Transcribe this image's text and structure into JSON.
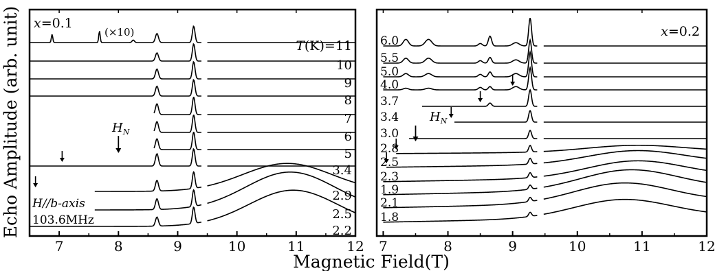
{
  "figure": {
    "ylabel": "Echo Amplitude (arb. unit)",
    "xlabel": "Magnetic Field(T)"
  },
  "chart_data": [
    {
      "type": "line",
      "panel": "left",
      "label": "x=0.1",
      "scale_note": "(×10)",
      "header": "T(K)=11",
      "annotations": {
        "hn": "H",
        "hn_sub": "N",
        "orientation": "H//b-axis",
        "frequency": "103.6MHz"
      },
      "xlim": [
        6.5,
        12
      ],
      "xticks": [
        "7",
        "8",
        "9",
        "10",
        "11",
        "12"
      ],
      "xtick_values": [
        7,
        8,
        9,
        10,
        11,
        12
      ],
      "gap": [
        9.4,
        9.5
      ],
      "peaks": [
        8.65,
        9.27
      ],
      "series": [
        {
          "label": "11",
          "baseline": 62,
          "start": 6.5,
          "peaks": [
            0.11,
            0.2
          ],
          "hump": 0,
          "hump_center": 10.9,
          "arrow": null
        },
        {
          "label": "10",
          "baseline": 89,
          "start": 6.5,
          "peaks": [
            0.1,
            0.21
          ],
          "hump": 0,
          "hump_center": 10.9,
          "arrow": null
        },
        {
          "label": "9",
          "baseline": 115,
          "start": 6.5,
          "peaks": [
            0.12,
            0.21
          ],
          "hump": 0,
          "hump_center": 10.9,
          "arrow": null
        },
        {
          "label": "8",
          "baseline": 140,
          "start": 6.5,
          "peaks": [
            0.12,
            0.2
          ],
          "hump": 0,
          "hump_center": 10.9,
          "arrow": null
        },
        {
          "label": "7",
          "baseline": 167,
          "start": 8.6,
          "peaks": [
            0.13,
            0.21
          ],
          "hump": 0,
          "hump_center": 10.9,
          "arrow": null
        },
        {
          "label": "6",
          "baseline": 193,
          "start": 8.6,
          "peaks": [
            0.13,
            0.21
          ],
          "hump": 0,
          "hump_center": 10.9,
          "arrow": null
        },
        {
          "label": "5",
          "baseline": 218,
          "start": 8.6,
          "peaks": [
            0.13,
            0.21
          ],
          "hump": 0,
          "hump_center": 10.9,
          "arrow": null
        },
        {
          "label": "3.4",
          "baseline": 242,
          "start": 6.5,
          "peaks": [
            0.15,
            0.21
          ],
          "hump": 0,
          "hump_center": 10.9,
          "arrow": 7.05
        },
        {
          "label": "2.9",
          "baseline": 279,
          "start": 7.6,
          "peaks": [
            0.13,
            0.2
          ],
          "hump": 0.34,
          "hump_center": 10.85,
          "arrow": 6.6
        },
        {
          "label": "2.5",
          "baseline": 306,
          "start": 7.6,
          "peaks": [
            0.13,
            0.2
          ],
          "hump": 0.46,
          "hump_center": 10.9,
          "arrow": null
        },
        {
          "label": "2.2",
          "baseline": 330,
          "start": 6.5,
          "peaks": [
            0.11,
            0.2
          ],
          "hump": 0.44,
          "hump_center": 10.95,
          "arrow": null
        }
      ],
      "hn_arrow": 8.0
    },
    {
      "type": "line",
      "panel": "right",
      "label": "x=0.2",
      "annotations": {
        "hn": "H",
        "hn_sub": "N"
      },
      "xlim": [
        6.9,
        12
      ],
      "xticks": [
        "7",
        "8",
        "9",
        "10",
        "11",
        "12"
      ],
      "xtick_values": [
        7,
        8,
        9,
        10,
        11,
        12
      ],
      "gap": [
        9.38,
        9.48
      ],
      "peaks": [
        8.65,
        9.27
      ],
      "series": [
        {
          "label": "6.0",
          "baseline": 67,
          "start": 7.0,
          "peaks": [
            0.12,
            0.34
          ],
          "hump": 0,
          "hump_center": 10.7,
          "arrow": null
        },
        {
          "label": "5.5",
          "baseline": 92,
          "start": 7.0,
          "peaks": [
            0.07,
            0.28
          ],
          "hump": 0,
          "hump_center": 10.7,
          "arrow": null
        },
        {
          "label": "5.0",
          "baseline": 112,
          "start": 7.0,
          "peaks": [
            0.06,
            0.3
          ],
          "hump": 0,
          "hump_center": 10.7,
          "arrow": null
        },
        {
          "label": "4.0",
          "baseline": 131,
          "start": 7.0,
          "peaks": [
            0.04,
            0.27
          ],
          "hump": 0,
          "hump_center": 10.7,
          "arrow": 9.0
        },
        {
          "label": "3.7",
          "baseline": 155,
          "start": 7.6,
          "peaks": [
            0.04,
            0.2
          ],
          "hump": 0,
          "hump_center": 10.7,
          "arrow": 8.5
        },
        {
          "label": "3.4",
          "baseline": 178,
          "start": 8.1,
          "peaks": [
            0.0,
            0.14
          ],
          "hump": 0,
          "hump_center": 10.7,
          "arrow": 8.05
        },
        {
          "label": "3.0",
          "baseline": 202,
          "start": 7.4,
          "peaks": [
            0.0,
            0.1
          ],
          "hump": 0,
          "hump_center": 10.7,
          "arrow": null
        },
        {
          "label": "2.8",
          "baseline": 224,
          "start": 7.2,
          "peaks": [
            0.0,
            0.08
          ],
          "hump": 0.08,
          "hump_center": 10.9,
          "arrow": 7.2
        },
        {
          "label": "2.5",
          "baseline": 244,
          "start": 7.05,
          "peaks": [
            0.0,
            0.07
          ],
          "hump": 0.16,
          "hump_center": 10.9,
          "arrow": 7.05
        },
        {
          "label": "2.3",
          "baseline": 265,
          "start": 7.0,
          "peaks": [
            0.0,
            0.06
          ],
          "hump": 0.2,
          "hump_center": 10.9,
          "arrow": null
        },
        {
          "label": "1.9",
          "baseline": 284,
          "start": 7.0,
          "peaks": [
            0.0,
            0.05
          ],
          "hump": 0.24,
          "hump_center": 10.8,
          "arrow": null
        },
        {
          "label": "2.1",
          "baseline": 303,
          "start": 7.0,
          "peaks": [
            0.0,
            0.05
          ],
          "hump": 0.24,
          "hump_center": 10.7,
          "arrow": null
        },
        {
          "label": "1.8",
          "baseline": 324,
          "start": 7.0,
          "peaks": [
            0.0,
            0.05
          ],
          "hump": 0.22,
          "hump_center": 10.7,
          "arrow": null
        }
      ],
      "hn_arrow": 7.5
    }
  ]
}
